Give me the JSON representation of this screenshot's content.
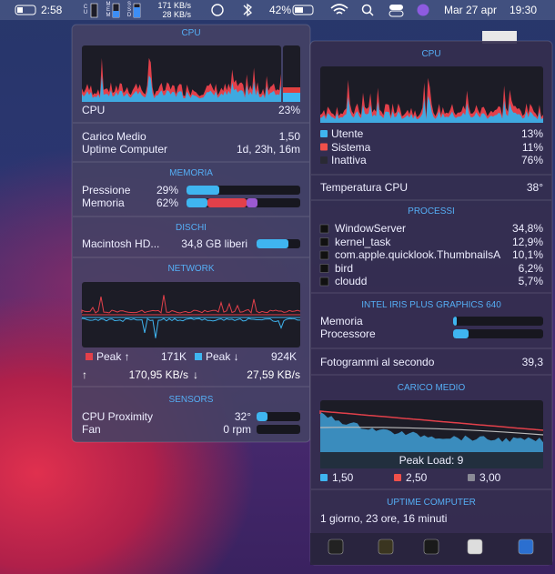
{
  "menubar": {
    "battery_time": "2:58",
    "cpu_label": "CU",
    "mem_label": "MEM",
    "ssd_label": "SSD",
    "upload": "171 KB/s",
    "download": "28 KB/s",
    "battery": "42%",
    "date": "Mar 27 apr",
    "time": "19:30"
  },
  "left_panel": {
    "cpu": {
      "title": "CPU",
      "label": "CPU",
      "value": "23%",
      "load_label": "Carico Medio",
      "load": "1,50",
      "uptime_label": "Uptime Computer",
      "uptime": "1d, 23h, 16m"
    },
    "memory": {
      "title": "MEMORIA",
      "rows": [
        {
          "label": "Pressione",
          "value": "29%"
        },
        {
          "label": "Memoria",
          "value": "62%"
        }
      ]
    },
    "disks": {
      "title": "DISCHI",
      "name": "Macintosh HD...",
      "free": "34,8 GB liberi"
    },
    "network": {
      "title": "NETWORK",
      "peak_up_label": "Peak ↑",
      "peak_up": "171K",
      "peak_down_label": "Peak ↓",
      "peak_down": "924K",
      "up_arrow": "↑",
      "up": "170,95 KB/s",
      "down_arrow": "↓",
      "down": "27,59 KB/s"
    },
    "sensors": {
      "title": "SENSORS",
      "rows": [
        {
          "label": "CPU Proximity",
          "value": "32°"
        },
        {
          "label": "Fan",
          "value": "0 rpm"
        }
      ]
    }
  },
  "right_panel": {
    "cpu": {
      "title": "CPU",
      "rows": [
        {
          "label": "Utente",
          "value": "13%",
          "color": "#3fb5f0"
        },
        {
          "label": "Sistema",
          "value": "11%",
          "color": "#f0504a"
        },
        {
          "label": "Inattiva",
          "value": "76%",
          "color": "#2a2a34"
        }
      ],
      "temp_label": "Temperatura CPU",
      "temp": "38°"
    },
    "processes": {
      "title": "PROCESSI",
      "rows": [
        {
          "name": "WindowServer",
          "value": "34,8%"
        },
        {
          "name": "kernel_task",
          "value": "12,9%"
        },
        {
          "name": "com.apple.quicklook.ThumbnailsA",
          "value": "10,1%"
        },
        {
          "name": "bird",
          "value": "6,2%"
        },
        {
          "name": "cloudd",
          "value": "5,7%"
        }
      ]
    },
    "gpu": {
      "title": "INTEL IRIS PLUS GRAPHICS 640",
      "rows": [
        "Memoria",
        "Processore"
      ],
      "fps_label": "Fotogrammi al secondo",
      "fps": "39,3"
    },
    "load": {
      "title": "CARICO MEDIO",
      "peak": "Peak Load: 9",
      "legend": [
        {
          "value": "1,50",
          "color": "#3fb5f0"
        },
        {
          "value": "2,50",
          "color": "#f0504a"
        },
        {
          "value": "3,00",
          "color": "#8a8a96"
        }
      ]
    },
    "uptime": {
      "title": "UPTIME COMPUTER",
      "value": "1 giorno, 23 ore, 16 minuti"
    }
  }
}
